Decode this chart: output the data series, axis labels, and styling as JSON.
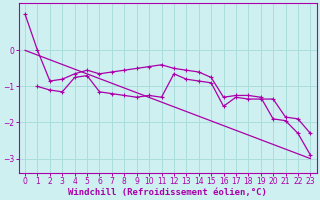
{
  "background_color": "#cff0f0",
  "line_color": "#aa00aa",
  "grid_color": "#aadddd",
  "xlabel": "Windchill (Refroidissement éolien,°C)",
  "xlabel_fontsize": 6.5,
  "tick_fontsize": 5.5,
  "xlim": [
    -0.5,
    23.5
  ],
  "ylim": [
    -3.4,
    1.3
  ],
  "yticks": [
    0,
    -1,
    -2,
    -3
  ],
  "xticks": [
    0,
    1,
    2,
    3,
    4,
    5,
    6,
    7,
    8,
    9,
    10,
    11,
    12,
    13,
    14,
    15,
    16,
    17,
    18,
    19,
    20,
    21,
    22,
    23
  ],
  "line1_x": [
    0,
    1,
    2,
    3,
    4,
    5,
    6,
    7,
    8,
    9,
    10,
    11,
    12,
    13,
    14,
    15,
    16,
    17,
    18,
    19,
    20,
    21,
    22,
    23
  ],
  "line1_y": [
    1.0,
    0.0,
    -0.85,
    -0.8,
    -0.65,
    -0.55,
    -0.65,
    -0.6,
    -0.55,
    -0.5,
    -0.45,
    -0.4,
    -0.5,
    -0.55,
    -0.6,
    -0.75,
    -1.3,
    -1.25,
    -1.25,
    -1.3,
    -1.9,
    -1.95,
    -2.3,
    -2.9
  ],
  "line2_x": [
    1,
    2,
    3,
    4,
    5,
    6,
    7,
    8,
    9,
    10,
    11,
    12,
    13,
    14,
    15,
    16,
    17,
    18,
    19,
    20,
    21,
    22,
    23
  ],
  "line2_y": [
    -1.0,
    -1.1,
    -1.15,
    -0.75,
    -0.7,
    -1.15,
    -1.2,
    -1.25,
    -1.3,
    -1.25,
    -1.3,
    -0.65,
    -0.8,
    -0.85,
    -0.9,
    -1.55,
    -1.3,
    -1.35,
    -1.35,
    -1.35,
    -1.85,
    -1.9,
    -2.3
  ],
  "line3_x": [
    0,
    23
  ],
  "line3_y": [
    0.0,
    -3.0
  ]
}
